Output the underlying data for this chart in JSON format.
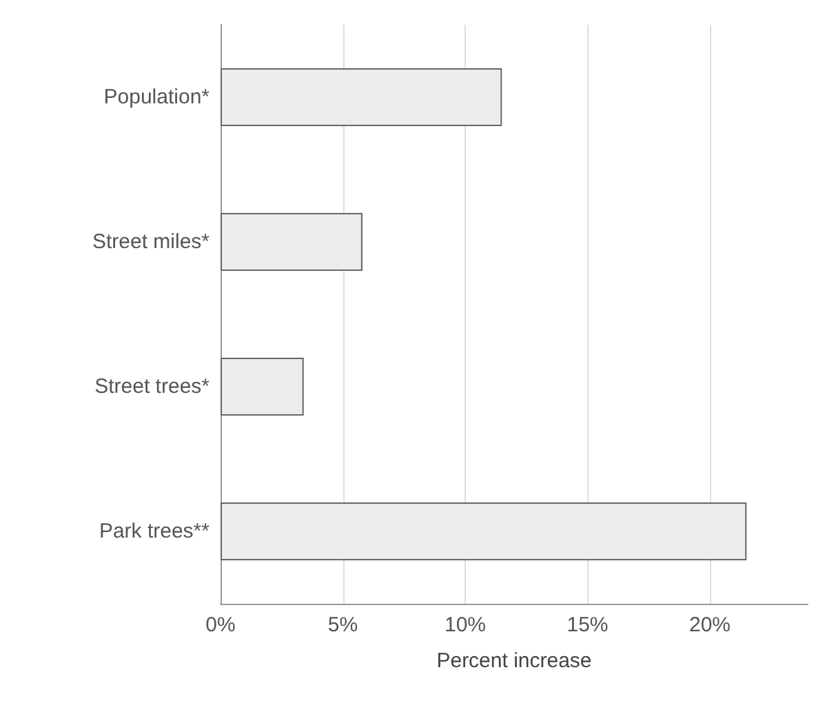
{
  "chart_data": {
    "type": "bar",
    "orientation": "horizontal",
    "xlabel": "Percent increase",
    "categories": [
      "Population*",
      "Street miles*",
      "Street trees*",
      "Park trees**"
    ],
    "values": [
      11.5,
      5.8,
      3.4,
      21.5
    ],
    "color": "#ececec",
    "xlim": [
      0,
      24
    ],
    "xticks": [
      {
        "value": 0,
        "label": "0%"
      },
      {
        "value": 5,
        "label": "5%"
      },
      {
        "value": 10,
        "label": "10%"
      },
      {
        "value": 15,
        "label": "15%"
      },
      {
        "value": 20,
        "label": "20%"
      }
    ],
    "grid": "x"
  }
}
